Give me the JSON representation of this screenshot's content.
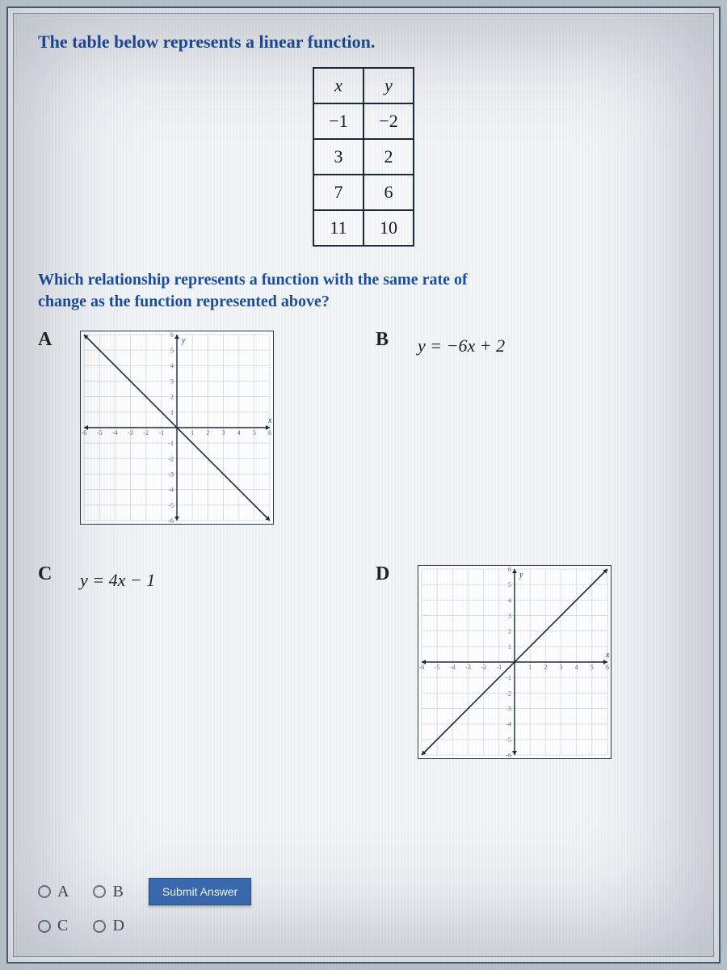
{
  "prompt": {
    "title_text": "The table below represents a linear function.",
    "question_text": "Which relationship represents a function with the same rate of change as the function represented above?"
  },
  "colors": {
    "page_bg": "#b5c0c8",
    "card_bg": "#f2f5f8",
    "frame_border": "#4a5a6a",
    "heading_color": "#1b4da0",
    "table_border": "#1b2a3a",
    "graph_grid": "#d8e2ec",
    "graph_axis": "#1a2a3a",
    "graph_line": "#1a2a3a",
    "submit_bg": "#3b6db5",
    "submit_text": "#ffffff",
    "radio_border": "#6a7a8a",
    "body_text": "#222222"
  },
  "table": {
    "headers": [
      "x",
      "y"
    ],
    "rows": [
      [
        "−1",
        "−2"
      ],
      [
        "3",
        "2"
      ],
      [
        "7",
        "6"
      ],
      [
        "11",
        "10"
      ]
    ],
    "cell_fontsize": 22
  },
  "options": {
    "A": {
      "label": "A",
      "type": "graph",
      "graph": {
        "xlim": [
          -6,
          6
        ],
        "ylim": [
          -6,
          6
        ],
        "tick_step": 1,
        "grid_color": "#d8e2ec",
        "axis_color": "#1a2a3a",
        "line_color": "#1a2a3a",
        "line_width": 1.6,
        "background": "#ffffff",
        "line_points": [
          [
            -6,
            6
          ],
          [
            6,
            -6
          ]
        ],
        "arrows_on_axes": true,
        "arrows_on_line": true,
        "tick_labels_x": [
          -6,
          -5,
          -4,
          -3,
          -2,
          -1,
          1,
          2,
          3,
          4,
          5,
          6
        ],
        "tick_labels_y": [
          -6,
          -5,
          -4,
          -3,
          -2,
          -1,
          1,
          2,
          3,
          4,
          5,
          6
        ],
        "tick_fontsize": 8
      }
    },
    "B": {
      "label": "B",
      "type": "equation",
      "equation_text": "y = −6x + 2"
    },
    "C": {
      "label": "C",
      "type": "equation",
      "equation_text": "y = 4x − 1"
    },
    "D": {
      "label": "D",
      "type": "graph",
      "graph": {
        "xlim": [
          -6,
          6
        ],
        "ylim": [
          -6,
          6
        ],
        "tick_step": 1,
        "grid_color": "#d8e2ec",
        "axis_color": "#1a2a3a",
        "line_color": "#1a2a3a",
        "line_width": 1.6,
        "background": "#ffffff",
        "line_points": [
          [
            -6,
            -6
          ],
          [
            6,
            6
          ]
        ],
        "arrows_on_axes": true,
        "arrows_on_line": true,
        "tick_labels_x": [
          -6,
          -5,
          -4,
          -3,
          -2,
          -1,
          1,
          2,
          3,
          4,
          5,
          6
        ],
        "tick_labels_y": [
          -6,
          -5,
          -4,
          -3,
          -2,
          -1,
          1,
          2,
          3,
          4,
          5,
          6
        ],
        "tick_fontsize": 8
      }
    }
  },
  "answer_choices": [
    {
      "key": "A",
      "label": "A"
    },
    {
      "key": "B",
      "label": "B"
    },
    {
      "key": "C",
      "label": "C"
    },
    {
      "key": "D",
      "label": "D"
    }
  ],
  "submit_label": "Submit Answer"
}
